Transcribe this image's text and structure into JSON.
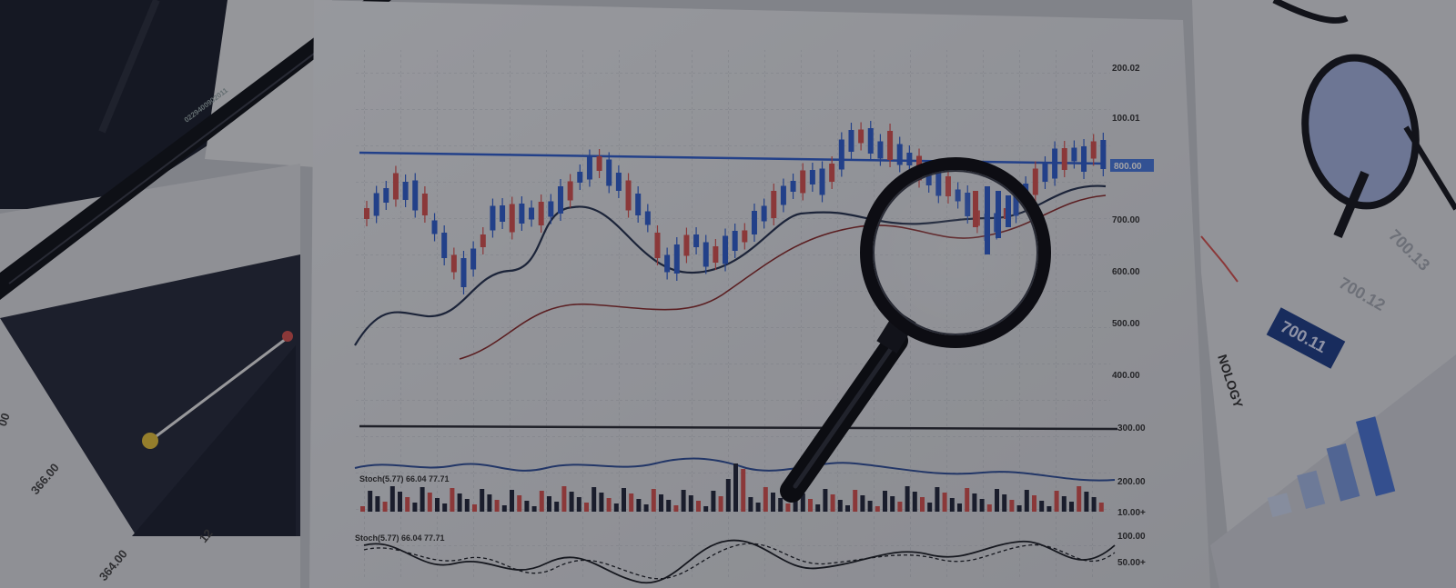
{
  "photo": {
    "subject": "stock-chart-printout-with-magnifier",
    "price_axis_labels": [
      "200.02",
      "100.01",
      "800.00",
      "700.00",
      "600.00",
      "500.00",
      "400.00",
      "300.00",
      "200.00",
      "10.00+",
      "100.00",
      "50.00+"
    ],
    "highlight_label": "800.00",
    "indicator_labels": [
      "Stoch(5.77) 66.04 77.71",
      "Stoch(5.77) 66.04 77.71"
    ],
    "right_sheet": {
      "badge": "700.11",
      "values": [
        "700.13",
        "700.12"
      ],
      "text": "NOLOGY"
    },
    "left_sheet": {
      "values": [
        "366.00",
        "12",
        "364.00",
        "00"
      ]
    },
    "pencil_text": "0229400902011",
    "colors": {
      "up": "#d9534f",
      "down": "#2f5fd0",
      "paper": "#e6e7ea",
      "ink": "#1c1f26"
    }
  }
}
